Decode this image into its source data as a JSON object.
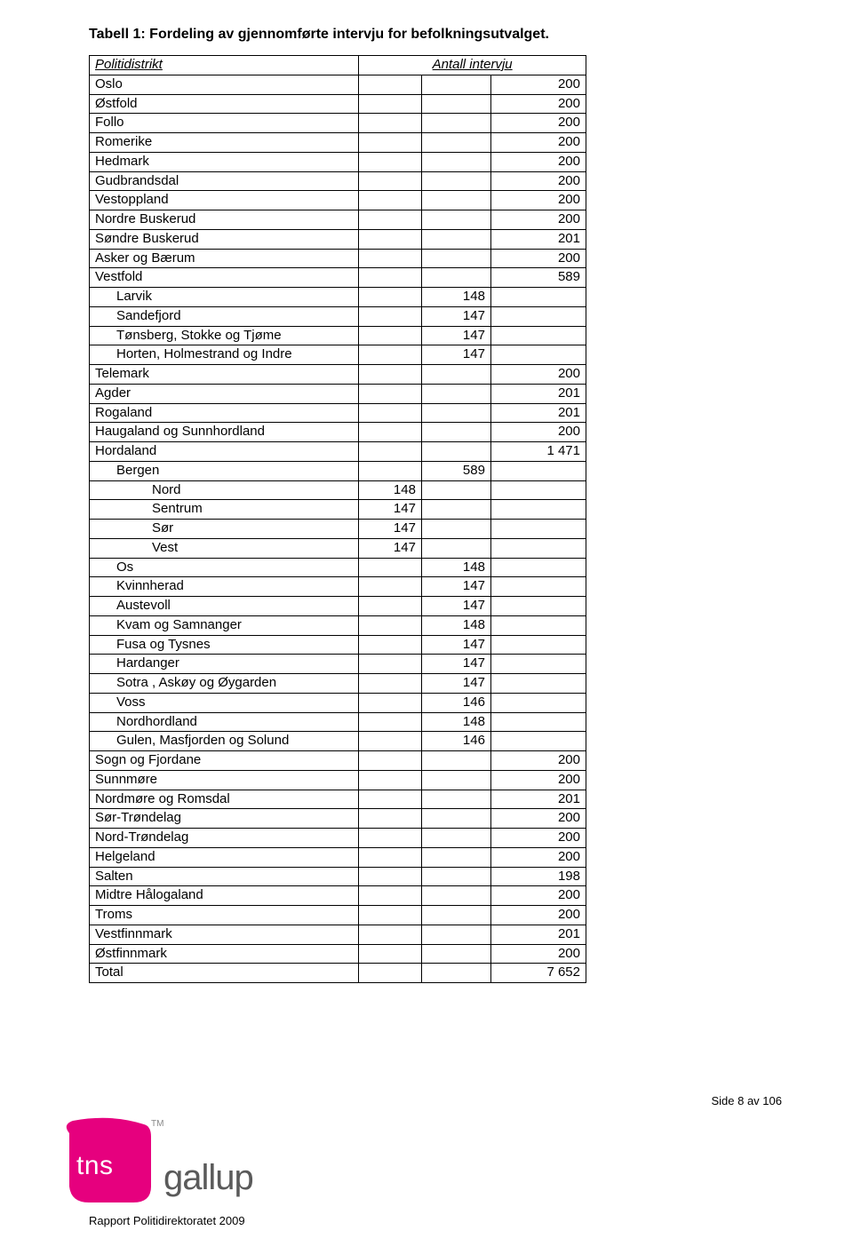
{
  "title": "Tabell 1: Fordeling av gjennomførte intervju for befolkningsutvalget.",
  "header": {
    "left": "Politidistrikt",
    "right": "Antall intervju"
  },
  "rows": [
    {
      "name": "Oslo",
      "indent": 0,
      "val": "200"
    },
    {
      "name": "Østfold",
      "indent": 0,
      "val": "200"
    },
    {
      "name": "Follo",
      "indent": 0,
      "val": "200"
    },
    {
      "name": "Romerike",
      "indent": 0,
      "val": "200"
    },
    {
      "name": "Hedmark",
      "indent": 0,
      "val": "200"
    },
    {
      "name": "Gudbrandsdal",
      "indent": 0,
      "val": "200"
    },
    {
      "name": "Vestoppland",
      "indent": 0,
      "val": "200"
    },
    {
      "name": "Nordre Buskerud",
      "indent": 0,
      "val": "200"
    },
    {
      "name": "Søndre Buskerud",
      "indent": 0,
      "val": "201"
    },
    {
      "name": "Asker og Bærum",
      "indent": 0,
      "val": "200"
    },
    {
      "name": "Vestfold",
      "indent": 0,
      "val": "589"
    },
    {
      "name": "Larvik",
      "indent": 1,
      "sub2": "148"
    },
    {
      "name": "Sandefjord",
      "indent": 1,
      "sub2": "147"
    },
    {
      "name": "Tønsberg, Stokke og Tjøme",
      "indent": 1,
      "sub2": "147"
    },
    {
      "name": "Horten, Holmestrand og Indre",
      "indent": 1,
      "sub2": "147"
    },
    {
      "name": "Telemark",
      "indent": 0,
      "val": "200"
    },
    {
      "name": "Agder",
      "indent": 0,
      "val": "201"
    },
    {
      "name": "Rogaland",
      "indent": 0,
      "val": "201"
    },
    {
      "name": "Haugaland og Sunnhordland",
      "indent": 0,
      "val": "200"
    },
    {
      "name": "Hordaland",
      "indent": 0,
      "val": "1 471"
    },
    {
      "name": "Bergen",
      "indent": 1,
      "sub2": "589"
    },
    {
      "name": "Nord",
      "indent": 2,
      "sub1": "148"
    },
    {
      "name": "Sentrum",
      "indent": 2,
      "sub1": "147"
    },
    {
      "name": "Sør",
      "indent": 2,
      "sub1": "147"
    },
    {
      "name": "Vest",
      "indent": 2,
      "sub1": "147"
    },
    {
      "name": "Os",
      "indent": 1,
      "sub2": "148"
    },
    {
      "name": "Kvinnherad",
      "indent": 1,
      "sub2": "147"
    },
    {
      "name": "Austevoll",
      "indent": 1,
      "sub2": "147"
    },
    {
      "name": "Kvam og Samnanger",
      "indent": 1,
      "sub2": "148"
    },
    {
      "name": "Fusa og Tysnes",
      "indent": 1,
      "sub2": "147"
    },
    {
      "name": "Hardanger",
      "indent": 1,
      "sub2": "147"
    },
    {
      "name": "Sotra , Askøy og Øygarden",
      "indent": 1,
      "sub2": "147"
    },
    {
      "name": "Voss",
      "indent": 1,
      "sub2": "146"
    },
    {
      "name": "Nordhordland",
      "indent": 1,
      "sub2": "148"
    },
    {
      "name": "Gulen, Masfjorden og Solund",
      "indent": 1,
      "sub2": "146"
    },
    {
      "name": "Sogn og Fjordane",
      "indent": 0,
      "val": "200"
    },
    {
      "name": "Sunnmøre",
      "indent": 0,
      "val": "200"
    },
    {
      "name": "Nordmøre og Romsdal",
      "indent": 0,
      "val": "201"
    },
    {
      "name": "Sør-Trøndelag",
      "indent": 0,
      "val": "200"
    },
    {
      "name": "Nord-Trøndelag",
      "indent": 0,
      "val": "200"
    },
    {
      "name": "Helgeland",
      "indent": 0,
      "val": "200"
    },
    {
      "name": "Salten",
      "indent": 0,
      "val": "198"
    },
    {
      "name": "Midtre Hålogaland",
      "indent": 0,
      "val": "200"
    },
    {
      "name": "Troms",
      "indent": 0,
      "val": "200"
    },
    {
      "name": "Vestfinnmark",
      "indent": 0,
      "val": "201"
    },
    {
      "name": "Østfinnmark",
      "indent": 0,
      "val": "200"
    },
    {
      "name": "Total",
      "indent": 0,
      "val": "7 652"
    }
  ],
  "footer": {
    "side": "Side 8 av 106",
    "tns": "tns",
    "tm": "TM",
    "gallup": "gallup",
    "report": "Rapport Politidirektoratet 2009"
  },
  "colors": {
    "logo": "#e6007e",
    "gallup": "#5a5a5a"
  }
}
